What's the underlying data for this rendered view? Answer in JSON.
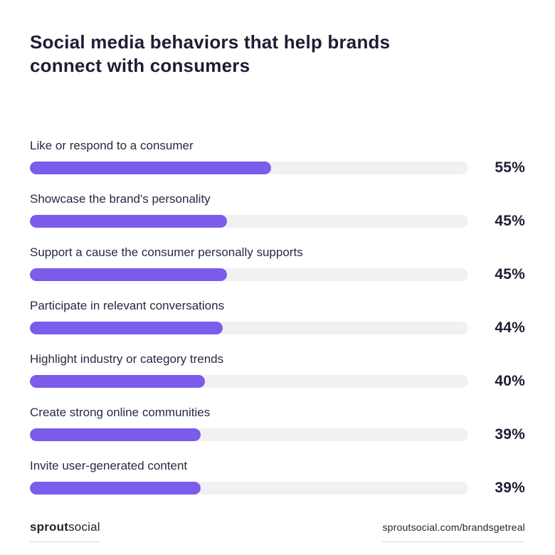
{
  "page": {
    "title_line1": "Social media behaviors that help brands",
    "title_line2": "connect with consumers"
  },
  "footer": {
    "logo_bold": "sprout",
    "logo_regular": "social",
    "url": "sproutsocial.com/brandsgetreal"
  },
  "colors": {
    "bar_fill": "#7C5CEA",
    "bar_track": "#F1F1F3",
    "text_dark": "#1F1D33"
  },
  "chart_data": {
    "type": "bar",
    "orientation": "horizontal",
    "title": "Social media behaviors that help brands connect with consumers",
    "categories": [
      "Like or respond to a consumer",
      "Showcase the brand's personality",
      "Support a cause the consumer personally supports",
      "Participate in relevant conversations",
      "Highlight industry or category trends",
      "Create strong online communities",
      "Invite user-generated content"
    ],
    "values": [
      55,
      45,
      45,
      44,
      40,
      39,
      39
    ],
    "unit": "%",
    "xlim": [
      0,
      100
    ],
    "grid": false,
    "legend": "none",
    "value_labels_position": "right"
  }
}
